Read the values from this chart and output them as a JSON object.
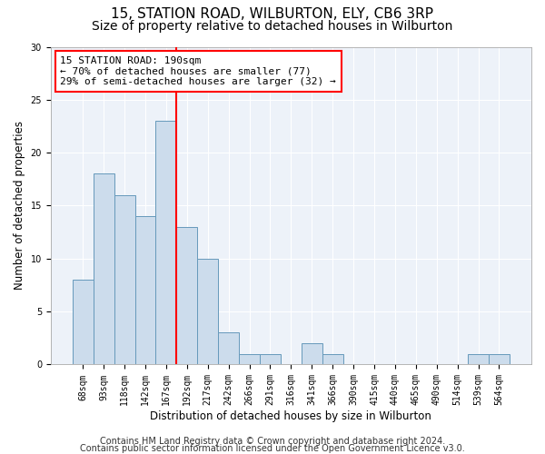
{
  "title1": "15, STATION ROAD, WILBURTON, ELY, CB6 3RP",
  "title2": "Size of property relative to detached houses in Wilburton",
  "xlabel": "Distribution of detached houses by size in Wilburton",
  "ylabel": "Number of detached properties",
  "categories": [
    "68sqm",
    "93sqm",
    "118sqm",
    "142sqm",
    "167sqm",
    "192sqm",
    "217sqm",
    "242sqm",
    "266sqm",
    "291sqm",
    "316sqm",
    "341sqm",
    "366sqm",
    "390sqm",
    "415sqm",
    "440sqm",
    "465sqm",
    "490sqm",
    "514sqm",
    "539sqm",
    "564sqm"
  ],
  "values": [
    8,
    18,
    16,
    14,
    23,
    13,
    10,
    3,
    1,
    1,
    0,
    2,
    1,
    0,
    0,
    0,
    0,
    0,
    0,
    1,
    1
  ],
  "bar_color": "#ccdcec",
  "bar_edge_color": "#6699bb",
  "vline_color": "red",
  "vline_index": 5,
  "annotation_text": "15 STATION ROAD: 190sqm\n← 70% of detached houses are smaller (77)\n29% of semi-detached houses are larger (32) →",
  "annotation_box_color": "white",
  "annotation_box_edge": "red",
  "ylim": [
    0,
    30
  ],
  "yticks": [
    0,
    5,
    10,
    15,
    20,
    25,
    30
  ],
  "background_color": "#edf2f9",
  "grid_color": "white",
  "footer1": "Contains HM Land Registry data © Crown copyright and database right 2024.",
  "footer2": "Contains public sector information licensed under the Open Government Licence v3.0.",
  "title1_fontsize": 11,
  "title2_fontsize": 10,
  "axis_label_fontsize": 8.5,
  "tick_fontsize": 7,
  "annotation_fontsize": 8,
  "footer_fontsize": 7
}
